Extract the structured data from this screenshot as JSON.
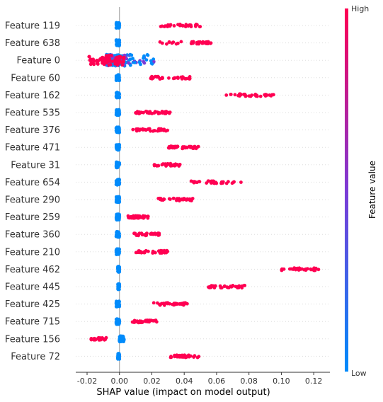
{
  "chart_data": {
    "type": "scatter",
    "subtype": "shap-beeswarm",
    "xlabel": "SHAP value (impact on model output)",
    "xlim": [
      -0.027,
      0.13
    ],
    "xticks": [
      "-0.02",
      "0.00",
      "0.02",
      "0.04",
      "0.06",
      "0.08",
      "0.10",
      "0.12"
    ],
    "xtick_values": [
      -0.02,
      0.0,
      0.02,
      0.04,
      0.06,
      0.08,
      0.1,
      0.12
    ],
    "zero_line": true,
    "row_gridlines": true,
    "colorbar": {
      "title": "Feature value",
      "high_label": "High",
      "low_label": "Low",
      "high_color": "#ff0052",
      "mid_color": "#7c3bd6",
      "low_color": "#008bfb"
    },
    "features": [
      {
        "label": "Feature 119",
        "low_range": [
          -0.002,
          0.0
        ],
        "high_range": [
          0.025,
          0.05
        ]
      },
      {
        "label": "Feature 638",
        "low_range": [
          -0.002,
          0.0
        ],
        "high_range": [
          0.025,
          0.058
        ]
      },
      {
        "label": "Feature 0",
        "low_range": [
          -0.008,
          0.022
        ],
        "high_range": [
          -0.019,
          0.003
        ],
        "mixed": true
      },
      {
        "label": "Feature 60",
        "low_range": [
          -0.002,
          0.0
        ],
        "high_range": [
          0.018,
          0.044
        ]
      },
      {
        "label": "Feature 162",
        "low_range": [
          -0.002,
          0.0
        ],
        "high_range": [
          0.066,
          0.096
        ]
      },
      {
        "label": "Feature 535",
        "low_range": [
          -0.002,
          0.0
        ],
        "high_range": [
          0.01,
          0.032
        ]
      },
      {
        "label": "Feature 376",
        "low_range": [
          -0.002,
          0.0
        ],
        "high_range": [
          0.008,
          0.03
        ]
      },
      {
        "label": "Feature 471",
        "low_range": [
          -0.002,
          0.0
        ],
        "high_range": [
          0.03,
          0.049
        ]
      },
      {
        "label": "Feature 31",
        "low_range": [
          -0.002,
          0.0
        ],
        "high_range": [
          0.021,
          0.038
        ]
      },
      {
        "label": "Feature 654",
        "low_range": [
          -0.002,
          0.0
        ],
        "high_range": [
          0.044,
          0.079
        ]
      },
      {
        "label": "Feature 290",
        "low_range": [
          -0.002,
          0.0
        ],
        "high_range": [
          0.023,
          0.046
        ]
      },
      {
        "label": "Feature 259",
        "low_range": [
          -0.002,
          0.0
        ],
        "high_range": [
          0.005,
          0.018
        ]
      },
      {
        "label": "Feature 360",
        "low_range": [
          -0.002,
          0.0
        ],
        "high_range": [
          0.008,
          0.026
        ]
      },
      {
        "label": "Feature 210",
        "low_range": [
          -0.002,
          0.0
        ],
        "high_range": [
          0.01,
          0.03
        ]
      },
      {
        "label": "Feature 462",
        "low_range": [
          -0.001,
          0.0
        ],
        "high_range": [
          0.1,
          0.123
        ]
      },
      {
        "label": "Feature 445",
        "low_range": [
          -0.001,
          0.0
        ],
        "high_range": [
          0.054,
          0.078
        ]
      },
      {
        "label": "Feature 425",
        "low_range": [
          -0.002,
          0.0
        ],
        "high_range": [
          0.021,
          0.042
        ]
      },
      {
        "label": "Feature 715",
        "low_range": [
          -0.002,
          0.0
        ],
        "high_range": [
          0.008,
          0.023
        ]
      },
      {
        "label": "Feature 156",
        "low_range": [
          0.0,
          0.003
        ],
        "high_range": [
          -0.018,
          -0.008
        ]
      },
      {
        "label": "Feature 72",
        "low_range": [
          -0.001,
          0.0
        ],
        "high_range": [
          0.031,
          0.05
        ]
      }
    ]
  }
}
